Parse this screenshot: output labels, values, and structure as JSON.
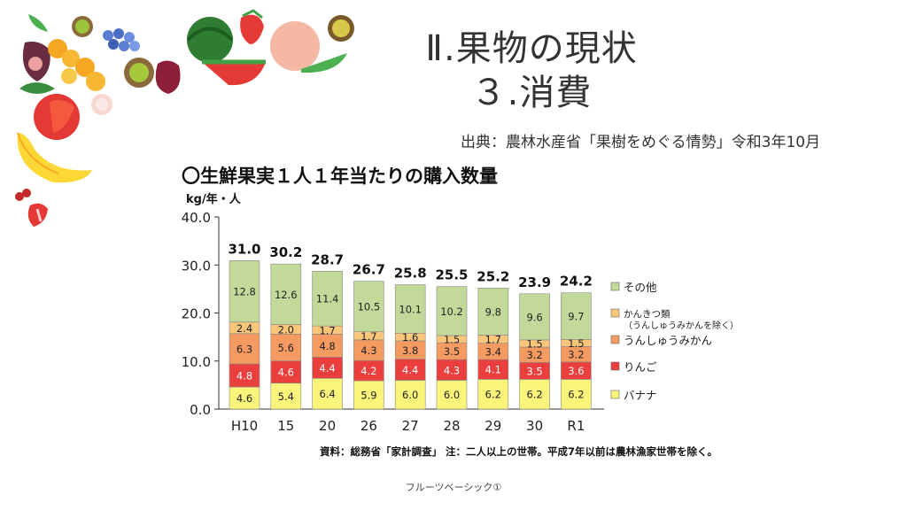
{
  "slide": {
    "title_line1": "Ⅱ.果物の現状",
    "title_line2": "３.消費",
    "source": "出典：農林水産省「果樹をめぐる情勢」令和3年10月",
    "footer": "フルーツベーシック①"
  },
  "chart_data": {
    "type": "bar",
    "stacked": true,
    "title": "〇生鮮果実１人１年当たりの購入数量",
    "ylabel": "kg/年・人",
    "ylim": [
      0,
      40
    ],
    "yticks": [
      "0.0",
      "10.0",
      "20.0",
      "30.0",
      "40.0"
    ],
    "categories": [
      "H10",
      "15",
      "20",
      "26",
      "27",
      "28",
      "29",
      "30",
      "R1"
    ],
    "totals": [
      "31.0",
      "30.2",
      "28.7",
      "26.7",
      "25.8",
      "25.5",
      "25.2",
      "23.9",
      "24.2"
    ],
    "series": [
      {
        "name": "バナナ",
        "color": "#fbf47a",
        "values": [
          4.6,
          5.4,
          6.4,
          5.9,
          6.0,
          6.0,
          6.2,
          6.2,
          6.2
        ]
      },
      {
        "name": "りんご",
        "color": "#ea3f3c",
        "values": [
          4.8,
          4.6,
          4.4,
          4.2,
          4.4,
          4.3,
          4.1,
          3.5,
          3.6
        ]
      },
      {
        "name": "うんしゅうみかん",
        "color": "#f59a61",
        "values": [
          6.3,
          5.6,
          4.8,
          4.3,
          3.8,
          3.5,
          3.4,
          3.2,
          3.2
        ]
      },
      {
        "name": "かんきつ類\n（うんしゅうみかんを除く）",
        "color": "#fbc67a",
        "values": [
          2.4,
          2.0,
          1.7,
          1.7,
          1.6,
          1.5,
          1.7,
          1.5,
          1.5
        ]
      },
      {
        "name": "その他",
        "color": "#c3d99a",
        "values": [
          12.8,
          12.6,
          11.4,
          10.5,
          10.1,
          10.2,
          9.8,
          9.6,
          9.7
        ]
      }
    ],
    "note": "資料：総務省「家計調査」 注：二人以上の世帯。平成7年以前は農林漁家世帯を除く。",
    "grid": false,
    "legend": "right"
  }
}
